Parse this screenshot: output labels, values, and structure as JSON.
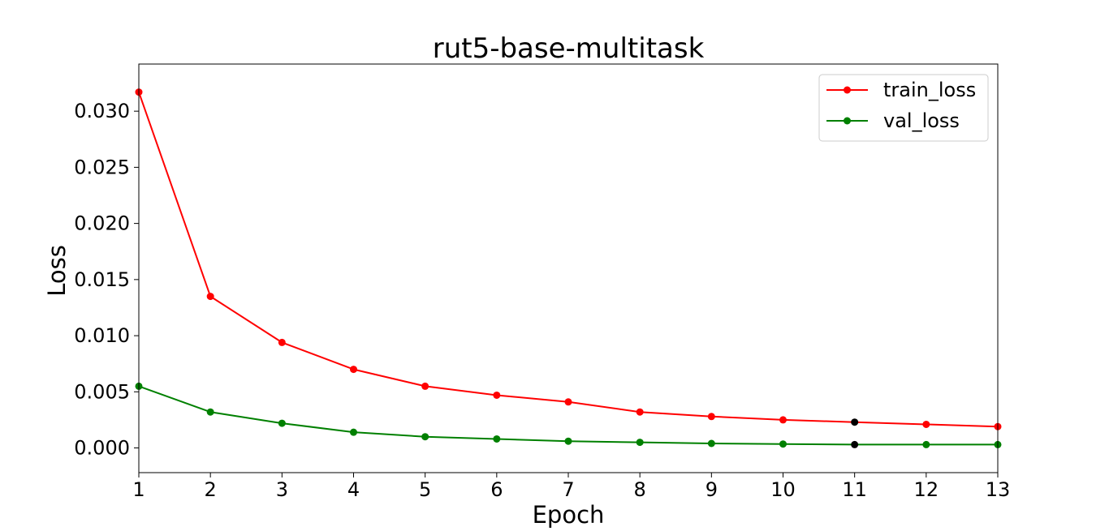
{
  "chart_data": {
    "type": "line",
    "title": "rut5-base-multitask",
    "xlabel": "Epoch",
    "ylabel": "Loss",
    "x": [
      1,
      2,
      3,
      4,
      5,
      6,
      7,
      8,
      9,
      10,
      11,
      12,
      13
    ],
    "xlim": [
      1,
      13
    ],
    "ylim": [
      -0.0022,
      0.0342
    ],
    "xticks": [
      1,
      2,
      3,
      4,
      5,
      6,
      7,
      8,
      9,
      10,
      11,
      12,
      13
    ],
    "yticks": [
      0.0,
      0.005,
      0.01,
      0.015,
      0.02,
      0.025,
      0.03
    ],
    "ytick_labels": [
      "0.000",
      "0.005",
      "0.010",
      "0.015",
      "0.020",
      "0.025",
      "0.030"
    ],
    "grid": false,
    "legend_position": "top-right",
    "series": [
      {
        "name": "train_loss",
        "color": "#ff0000",
        "values": [
          0.0317,
          0.0135,
          0.0094,
          0.007,
          0.0055,
          0.0047,
          0.0041,
          0.0032,
          0.0028,
          0.0025,
          0.0023,
          0.0021,
          0.0019
        ]
      },
      {
        "name": "val_loss",
        "color": "#008000",
        "values": [
          0.0055,
          0.0032,
          0.0022,
          0.0014,
          0.001,
          0.0008,
          0.0006,
          0.0005,
          0.0004,
          0.00035,
          0.0003,
          0.0003,
          0.0003
        ]
      }
    ],
    "highlight": {
      "x": 11,
      "color": "#000000"
    }
  }
}
